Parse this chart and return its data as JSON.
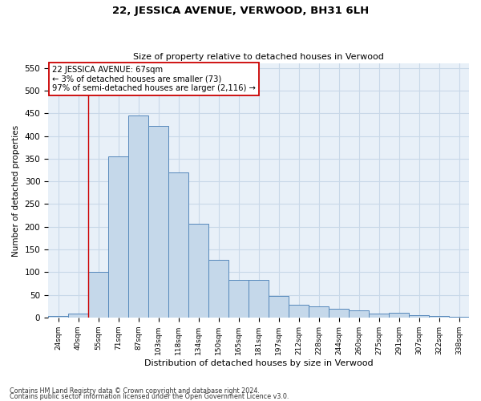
{
  "title": "22, JESSICA AVENUE, VERWOOD, BH31 6LH",
  "subtitle": "Size of property relative to detached houses in Verwood",
  "xlabel": "Distribution of detached houses by size in Verwood",
  "ylabel": "Number of detached properties",
  "categories": [
    "24sqm",
    "40sqm",
    "55sqm",
    "71sqm",
    "87sqm",
    "103sqm",
    "118sqm",
    "134sqm",
    "150sqm",
    "165sqm",
    "181sqm",
    "197sqm",
    "212sqm",
    "228sqm",
    "244sqm",
    "260sqm",
    "275sqm",
    "291sqm",
    "307sqm",
    "322sqm",
    "338sqm"
  ],
  "bar_heights": [
    3,
    8,
    100,
    355,
    445,
    422,
    320,
    207,
    127,
    83,
    83,
    48,
    28,
    25,
    20,
    15,
    8,
    10,
    5,
    3,
    2
  ],
  "bar_color": "#c5d8ea",
  "bar_edge_color": "#5588bb",
  "vline_x": 2,
  "vline_color": "#cc0000",
  "annotation_text": "22 JESSICA AVENUE: 67sqm\n← 3% of detached houses are smaller (73)\n97% of semi-detached houses are larger (2,116) →",
  "annotation_box_color": "#ffffff",
  "annotation_box_edge": "#cc0000",
  "grid_color": "#c8d8e8",
  "background_color": "#e8f0f8",
  "ylim": [
    0,
    560
  ],
  "yticks": [
    0,
    50,
    100,
    150,
    200,
    250,
    300,
    350,
    400,
    450,
    500,
    550
  ],
  "footnote1": "Contains HM Land Registry data © Crown copyright and database right 2024.",
  "footnote2": "Contains public sector information licensed under the Open Government Licence v3.0."
}
